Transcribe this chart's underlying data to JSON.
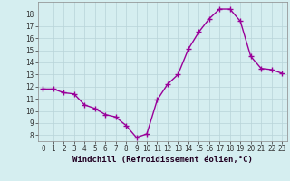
{
  "x": [
    0,
    1,
    2,
    3,
    4,
    5,
    6,
    7,
    8,
    9,
    10,
    11,
    12,
    13,
    14,
    15,
    16,
    17,
    18,
    19,
    20,
    21,
    22,
    23
  ],
  "y": [
    11.8,
    11.8,
    11.5,
    11.4,
    10.5,
    10.2,
    9.7,
    9.5,
    8.8,
    7.8,
    8.1,
    10.9,
    12.2,
    13.0,
    15.1,
    16.5,
    17.6,
    18.4,
    18.4,
    17.4,
    14.5,
    13.5,
    13.4,
    13.1
  ],
  "line_color": "#990099",
  "marker": "+",
  "marker_size": 4,
  "bg_color": "#d5eef0",
  "grid_color": "#b8d4d8",
  "xlabel": "Windchill (Refroidissement éolien,°C)",
  "xlim": [
    -0.5,
    23.5
  ],
  "ylim": [
    7.5,
    19.0
  ],
  "yticks": [
    8,
    9,
    10,
    11,
    12,
    13,
    14,
    15,
    16,
    17,
    18
  ],
  "xticks": [
    0,
    1,
    2,
    3,
    4,
    5,
    6,
    7,
    8,
    9,
    10,
    11,
    12,
    13,
    14,
    15,
    16,
    17,
    18,
    19,
    20,
    21,
    22,
    23
  ],
  "xlabel_fontsize": 6.5,
  "tick_fontsize": 5.5,
  "line_width": 1.0
}
